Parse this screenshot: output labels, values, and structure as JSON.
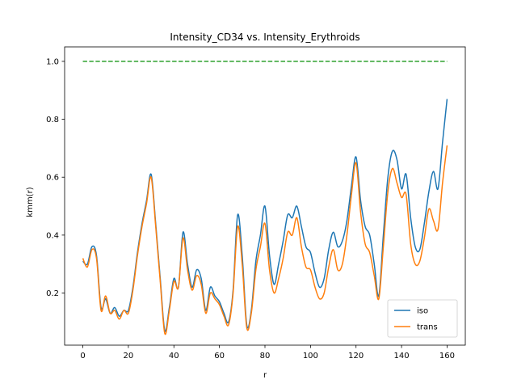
{
  "chart_data": {
    "type": "line",
    "title": "Intensity_CD34 vs. Intensity_Erythroids",
    "xlabel": "r",
    "ylabel": "kmm(r)",
    "xlim": [
      -8,
      168
    ],
    "ylim": [
      0.02,
      1.05
    ],
    "xticks": [
      0,
      20,
      40,
      60,
      80,
      100,
      120,
      140,
      160
    ],
    "yticks": [
      0.2,
      0.4,
      0.6,
      0.8,
      1.0
    ],
    "xtick_labels": [
      "0",
      "20",
      "40",
      "60",
      "80",
      "100",
      "120",
      "140",
      "160"
    ],
    "ytick_labels": [
      "0.2",
      "0.4",
      "0.6",
      "0.8",
      "1.0"
    ],
    "legend_position": "lower-right",
    "grid": false,
    "series": [
      {
        "name": "iso",
        "color": "#1f77b4",
        "style": "solid",
        "x": [
          0,
          2,
          4,
          6,
          8,
          10,
          12,
          14,
          16,
          18,
          20,
          22,
          24,
          26,
          28,
          30,
          32,
          34,
          36,
          38,
          40,
          42,
          44,
          46,
          48,
          50,
          52,
          54,
          56,
          58,
          60,
          62,
          64,
          66,
          68,
          70,
          72,
          74,
          76,
          78,
          80,
          82,
          84,
          86,
          88,
          90,
          92,
          94,
          96,
          98,
          100,
          102,
          104,
          106,
          108,
          110,
          112,
          114,
          116,
          118,
          120,
          122,
          124,
          126,
          128,
          130,
          132,
          134,
          136,
          138,
          140,
          142,
          144,
          146,
          148,
          150,
          152,
          154,
          156,
          158,
          160
        ],
        "y": [
          0.31,
          0.3,
          0.36,
          0.33,
          0.15,
          0.18,
          0.13,
          0.15,
          0.12,
          0.14,
          0.14,
          0.22,
          0.34,
          0.44,
          0.52,
          0.61,
          0.44,
          0.25,
          0.07,
          0.15,
          0.25,
          0.22,
          0.41,
          0.3,
          0.22,
          0.28,
          0.25,
          0.14,
          0.22,
          0.19,
          0.17,
          0.13,
          0.1,
          0.21,
          0.47,
          0.33,
          0.09,
          0.14,
          0.31,
          0.4,
          0.5,
          0.33,
          0.23,
          0.3,
          0.38,
          0.47,
          0.46,
          0.5,
          0.43,
          0.36,
          0.34,
          0.27,
          0.22,
          0.25,
          0.35,
          0.41,
          0.36,
          0.38,
          0.45,
          0.57,
          0.67,
          0.52,
          0.43,
          0.4,
          0.3,
          0.19,
          0.4,
          0.6,
          0.69,
          0.66,
          0.56,
          0.61,
          0.46,
          0.36,
          0.35,
          0.44,
          0.55,
          0.62,
          0.56,
          0.72,
          0.87
        ]
      },
      {
        "name": "trans",
        "color": "#ff7f0e",
        "style": "solid",
        "x": [
          0,
          2,
          4,
          6,
          8,
          10,
          12,
          14,
          16,
          18,
          20,
          22,
          24,
          26,
          28,
          30,
          32,
          34,
          36,
          38,
          40,
          42,
          44,
          46,
          48,
          50,
          52,
          54,
          56,
          58,
          60,
          62,
          64,
          66,
          68,
          70,
          72,
          74,
          76,
          78,
          80,
          82,
          84,
          86,
          88,
          90,
          92,
          94,
          96,
          98,
          100,
          102,
          104,
          106,
          108,
          110,
          112,
          114,
          116,
          118,
          120,
          122,
          124,
          126,
          128,
          130,
          132,
          134,
          136,
          138,
          140,
          142,
          144,
          146,
          148,
          150,
          152,
          154,
          156,
          158,
          160
        ],
        "y": [
          0.32,
          0.29,
          0.35,
          0.32,
          0.14,
          0.19,
          0.13,
          0.14,
          0.11,
          0.14,
          0.13,
          0.21,
          0.33,
          0.43,
          0.51,
          0.6,
          0.43,
          0.24,
          0.06,
          0.14,
          0.24,
          0.22,
          0.39,
          0.28,
          0.21,
          0.26,
          0.23,
          0.13,
          0.2,
          0.18,
          0.16,
          0.12,
          0.09,
          0.2,
          0.43,
          0.3,
          0.08,
          0.13,
          0.28,
          0.36,
          0.44,
          0.28,
          0.2,
          0.25,
          0.32,
          0.41,
          0.4,
          0.46,
          0.36,
          0.29,
          0.28,
          0.22,
          0.18,
          0.2,
          0.29,
          0.35,
          0.28,
          0.3,
          0.4,
          0.54,
          0.65,
          0.48,
          0.37,
          0.34,
          0.26,
          0.18,
          0.36,
          0.55,
          0.63,
          0.58,
          0.53,
          0.54,
          0.37,
          0.3,
          0.31,
          0.39,
          0.49,
          0.45,
          0.42,
          0.58,
          0.71
        ]
      },
      {
        "name": "",
        "color": "#2ca02c",
        "style": "dashed",
        "x": [
          0,
          160
        ],
        "y": [
          1.0,
          1.0
        ]
      }
    ]
  }
}
